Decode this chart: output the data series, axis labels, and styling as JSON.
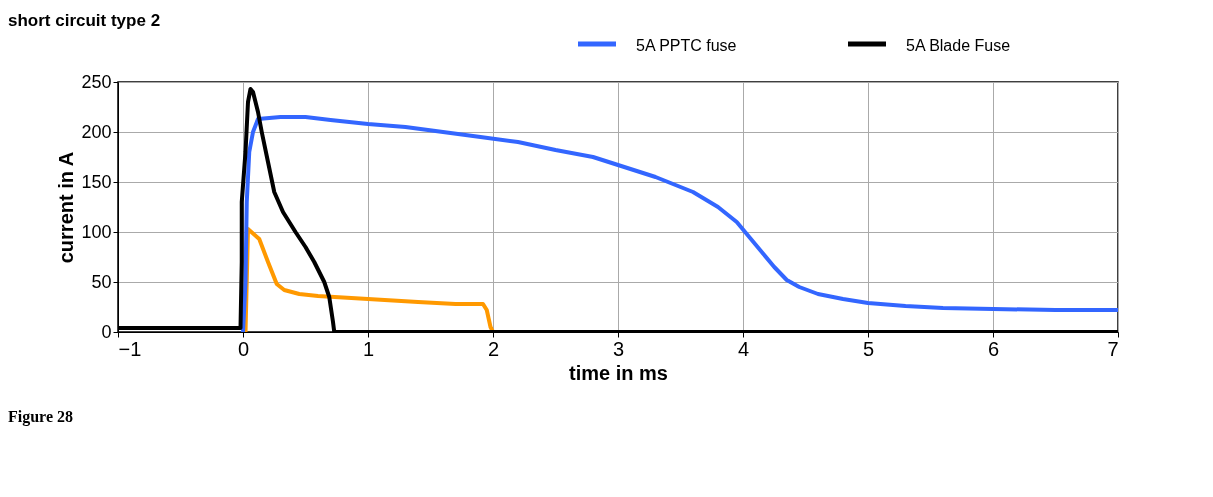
{
  "chart_data": {
    "type": "line",
    "title": "short circuit type 2",
    "xlabel": "time in ms",
    "ylabel": "current in A",
    "xlim": [
      -1,
      7
    ],
    "xticks": [
      -1,
      0,
      1,
      2,
      3,
      4,
      5,
      6,
      7
    ],
    "ylim": [
      0,
      250
    ],
    "yticks": [
      0,
      50,
      100,
      150,
      200,
      250
    ],
    "grid": true,
    "legend": "top right",
    "line_style": "solid",
    "marker": "none",
    "annotations": [
      "Figure 28"
    ],
    "series": [
      {
        "color": "#ff9900",
        "x": [
          0.02,
          0.04,
          0.13,
          0.2,
          0.27,
          0.33,
          0.45,
          0.6,
          1.0,
          1.4,
          1.7,
          1.92,
          1.95,
          1.98,
          2.0
        ],
        "values": [
          0,
          103,
          93,
          70,
          48,
          42,
          38,
          36,
          33,
          30,
          28,
          28,
          22,
          5,
          0
        ]
      },
      {
        "name": "5A PPTC fuse",
        "color": "#3366ff",
        "x": [
          0,
          0.02,
          0.03,
          0.05,
          0.08,
          0.12,
          0.3,
          0.5,
          0.7,
          1.0,
          1.3,
          1.6,
          1.9,
          2.2,
          2.5,
          2.8,
          3.0,
          3.3,
          3.6,
          3.8,
          3.95,
          4.05,
          4.15,
          4.25,
          4.35,
          4.45,
          4.6,
          4.8,
          5.0,
          5.3,
          5.6,
          6.0,
          6.5,
          7.0
        ],
        "values": [
          0,
          50,
          130,
          180,
          200,
          213,
          215,
          215,
          212,
          208,
          205,
          200,
          195,
          190,
          182,
          175,
          167,
          155,
          140,
          125,
          110,
          95,
          80,
          65,
          52,
          45,
          38,
          33,
          29,
          26,
          24,
          23,
          22,
          22
        ]
      },
      {
        "name": "5A Blade Fuse",
        "color": "#000000",
        "x": [
          -1,
          -0.02,
          -0.01,
          -0.01,
          0.02,
          0.04,
          0.06,
          0.08,
          0.12,
          0.15,
          0.2,
          0.25,
          0.32,
          0.42,
          0.5,
          0.57,
          0.65,
          0.69,
          0.72,
          0.73,
          7.0
        ],
        "values": [
          4,
          4,
          70,
          130,
          180,
          230,
          243,
          240,
          220,
          200,
          170,
          140,
          120,
          100,
          85,
          70,
          50,
          35,
          10,
          0,
          0
        ]
      }
    ]
  }
}
